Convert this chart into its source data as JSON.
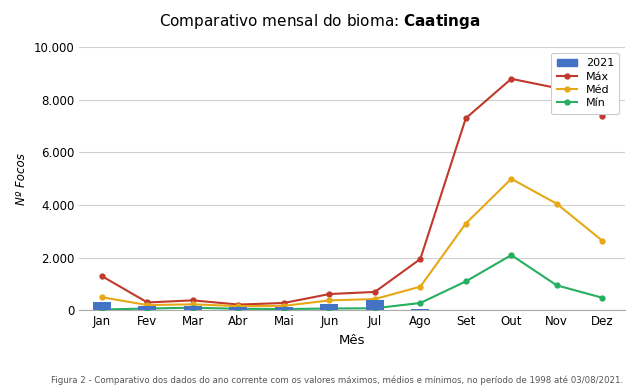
{
  "title_normal": "Comparativo mensal do bioma: ",
  "title_bold": "Caatinga",
  "xlabel": "Mês",
  "ylabel": "Nº Focos",
  "caption": "Figura 2 - Comparativo dos dados do ano corrente com os valores máximos, médios e mínimos, no período de 1998 até 03/08/2021.",
  "months": [
    "Jan",
    "Fev",
    "Mar",
    "Abr",
    "Mai",
    "Jun",
    "Jul",
    "Ago",
    "Set",
    "Out",
    "Nov",
    "Dez"
  ],
  "series_2021": [
    300,
    150,
    180,
    130,
    120,
    250,
    380,
    60,
    null,
    null,
    null,
    null
  ],
  "series_max": [
    1300,
    300,
    380,
    220,
    280,
    620,
    700,
    1950,
    7300,
    8800,
    8450,
    7400
  ],
  "series_med": [
    500,
    200,
    230,
    160,
    170,
    380,
    430,
    900,
    3300,
    5000,
    4050,
    2650
  ],
  "series_min": [
    30,
    70,
    100,
    60,
    50,
    70,
    80,
    280,
    1100,
    2100,
    950,
    480
  ],
  "color_2021": "#4472c4",
  "color_max": "#c0392b",
  "color_med": "#e6a817",
  "color_min": "#27ae60",
  "ylim": [
    0,
    10000
  ],
  "yticks": [
    0,
    2000,
    4000,
    6000,
    8000,
    10000
  ],
  "ytick_labels": [
    "0",
    "2.000",
    "4.000",
    "6.000",
    "8.000",
    "10.000"
  ],
  "background_color": "#ffffff",
  "plot_bg_color": "#ffffff",
  "grid_color": "#d0d0d0",
  "figsize": [
    6.4,
    3.89
  ],
  "dpi": 100
}
